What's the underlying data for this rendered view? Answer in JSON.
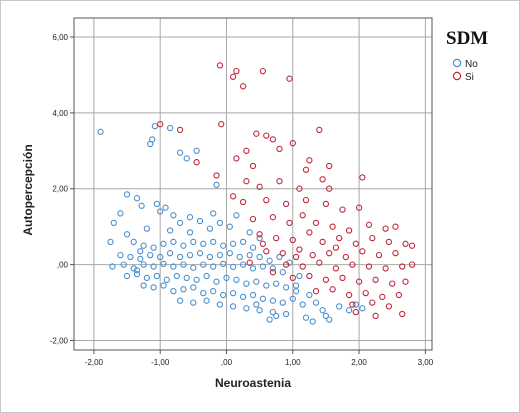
{
  "chart_data": {
    "type": "scatter",
    "xlabel": "Neuroastenia",
    "ylabel": "Autopercepción",
    "xlim": [
      -2.3,
      3.1
    ],
    "ylim": [
      -2.25,
      6.5
    ],
    "x_ticks": [
      "-2,00",
      "-1,00",
      ",00",
      "1,00",
      "2,00",
      "3,00"
    ],
    "y_ticks": [
      "-2,00",
      ",00",
      "2,00",
      "4,00",
      "6,00"
    ],
    "grid": true,
    "legend_title": "SDM",
    "legend_placement": "top-right",
    "series": [
      {
        "name": "No",
        "color": "#4a90d0",
        "points": [
          [
            -1.9,
            3.5
          ],
          [
            -1.08,
            3.65
          ],
          [
            -1.12,
            3.3
          ],
          [
            -1.15,
            3.18
          ],
          [
            -0.85,
            3.6
          ],
          [
            -0.7,
            2.95
          ],
          [
            -0.6,
            2.8
          ],
          [
            -0.45,
            3.0
          ],
          [
            -1.5,
            1.85
          ],
          [
            -1.35,
            1.75
          ],
          [
            -1.28,
            1.55
          ],
          [
            -1.6,
            1.35
          ],
          [
            -1.7,
            1.1
          ],
          [
            -1.5,
            0.8
          ],
          [
            -1.05,
            1.6
          ],
          [
            -1.0,
            1.4
          ],
          [
            -0.92,
            1.5
          ],
          [
            -0.8,
            1.3
          ],
          [
            -0.7,
            1.1
          ],
          [
            -0.55,
            1.25
          ],
          [
            -0.4,
            1.15
          ],
          [
            -0.25,
            0.95
          ],
          [
            -0.1,
            1.1
          ],
          [
            0.05,
            1.0
          ],
          [
            -0.85,
            0.9
          ],
          [
            -1.2,
            0.95
          ],
          [
            -0.55,
            0.85
          ],
          [
            -1.4,
            0.6
          ],
          [
            -1.25,
            0.5
          ],
          [
            -1.1,
            0.45
          ],
          [
            -0.95,
            0.55
          ],
          [
            -0.8,
            0.6
          ],
          [
            -0.65,
            0.5
          ],
          [
            -0.5,
            0.6
          ],
          [
            -0.35,
            0.55
          ],
          [
            -0.2,
            0.6
          ],
          [
            -0.05,
            0.5
          ],
          [
            0.1,
            0.55
          ],
          [
            0.25,
            0.6
          ],
          [
            0.4,
            0.45
          ],
          [
            -1.6,
            0.25
          ],
          [
            -1.45,
            0.2
          ],
          [
            -1.3,
            0.15
          ],
          [
            -1.15,
            0.25
          ],
          [
            -1.0,
            0.2
          ],
          [
            -0.85,
            0.3
          ],
          [
            -0.7,
            0.2
          ],
          [
            -0.55,
            0.25
          ],
          [
            -0.4,
            0.3
          ],
          [
            -0.25,
            0.2
          ],
          [
            -0.1,
            0.25
          ],
          [
            0.05,
            0.3
          ],
          [
            0.2,
            0.2
          ],
          [
            0.35,
            0.25
          ],
          [
            0.5,
            0.2
          ],
          [
            0.65,
            0.1
          ],
          [
            -1.72,
            -0.05
          ],
          [
            -1.55,
            0.0
          ],
          [
            -1.4,
            -0.1
          ],
          [
            -1.25,
            0.0
          ],
          [
            -1.1,
            -0.05
          ],
          [
            -0.95,
            0.02
          ],
          [
            -0.8,
            -0.05
          ],
          [
            -0.65,
            0.0
          ],
          [
            -0.5,
            -0.08
          ],
          [
            -0.35,
            0.0
          ],
          [
            -0.2,
            -0.05
          ],
          [
            -0.05,
            0.02
          ],
          [
            0.1,
            -0.06
          ],
          [
            0.25,
            0.0
          ],
          [
            0.4,
            -0.1
          ],
          [
            0.55,
            -0.05
          ],
          [
            0.7,
            -0.1
          ],
          [
            0.85,
            -0.2
          ],
          [
            -1.5,
            -0.3
          ],
          [
            -1.35,
            -0.25
          ],
          [
            -1.2,
            -0.35
          ],
          [
            -1.05,
            -0.3
          ],
          [
            -0.9,
            -0.4
          ],
          [
            -0.75,
            -0.3
          ],
          [
            -0.6,
            -0.35
          ],
          [
            -0.45,
            -0.4
          ],
          [
            -0.3,
            -0.3
          ],
          [
            -0.15,
            -0.45
          ],
          [
            0.0,
            -0.35
          ],
          [
            0.15,
            -0.4
          ],
          [
            0.3,
            -0.5
          ],
          [
            0.45,
            -0.45
          ],
          [
            0.6,
            -0.55
          ],
          [
            0.75,
            -0.5
          ],
          [
            0.9,
            -0.6
          ],
          [
            1.05,
            -0.55
          ],
          [
            -1.25,
            -0.55
          ],
          [
            -1.1,
            -0.6
          ],
          [
            -0.95,
            -0.55
          ],
          [
            -0.8,
            -0.7
          ],
          [
            -0.65,
            -0.65
          ],
          [
            -0.5,
            -0.6
          ],
          [
            -0.35,
            -0.75
          ],
          [
            -0.2,
            -0.7
          ],
          [
            -0.05,
            -0.8
          ],
          [
            0.1,
            -0.75
          ],
          [
            0.25,
            -0.85
          ],
          [
            0.4,
            -0.8
          ],
          [
            0.55,
            -0.9
          ],
          [
            0.7,
            -0.95
          ],
          [
            0.85,
            -1.0
          ],
          [
            1.0,
            -0.9
          ],
          [
            1.15,
            -1.05
          ],
          [
            -0.7,
            -0.95
          ],
          [
            -0.5,
            -1.0
          ],
          [
            -0.3,
            -0.95
          ],
          [
            -0.1,
            -1.05
          ],
          [
            0.1,
            -1.1
          ],
          [
            0.3,
            -1.15
          ],
          [
            0.5,
            -1.2
          ],
          [
            0.7,
            -1.25
          ],
          [
            0.9,
            -1.3
          ],
          [
            0.65,
            -1.45
          ],
          [
            0.75,
            -1.35
          ],
          [
            1.25,
            -0.8
          ],
          [
            1.35,
            -1.0
          ],
          [
            1.45,
            -1.2
          ],
          [
            1.55,
            -1.45
          ],
          [
            1.5,
            -1.35
          ],
          [
            1.7,
            -1.1
          ],
          [
            1.85,
            -1.2
          ],
          [
            1.95,
            -1.05
          ],
          [
            2.05,
            -1.15
          ],
          [
            1.3,
            -1.5
          ],
          [
            1.2,
            -1.4
          ],
          [
            0.35,
            0.85
          ],
          [
            0.5,
            0.7
          ],
          [
            -0.2,
            1.35
          ],
          [
            0.15,
            1.3
          ],
          [
            -0.15,
            2.1
          ],
          [
            -1.3,
            0.35
          ],
          [
            -1.75,
            0.6
          ],
          [
            -1.35,
            -0.15
          ],
          [
            0.8,
            0.2
          ],
          [
            0.95,
            0.05
          ],
          [
            1.1,
            -0.3
          ],
          [
            1.05,
            -0.7
          ],
          [
            0.45,
            -1.05
          ]
        ]
      },
      {
        "name": "Si",
        "color": "#c0283a",
        "points": [
          [
            -0.1,
            5.25
          ],
          [
            0.15,
            5.1
          ],
          [
            0.55,
            5.1
          ],
          [
            0.1,
            4.95
          ],
          [
            0.95,
            4.9
          ],
          [
            0.25,
            4.7
          ],
          [
            -1.0,
            3.7
          ],
          [
            -0.7,
            3.55
          ],
          [
            -0.08,
            3.7
          ],
          [
            0.45,
            3.45
          ],
          [
            0.6,
            3.4
          ],
          [
            0.7,
            3.3
          ],
          [
            1.4,
            3.55
          ],
          [
            1.0,
            3.2
          ],
          [
            0.8,
            3.05
          ],
          [
            0.3,
            3.0
          ],
          [
            -0.45,
            2.7
          ],
          [
            0.15,
            2.8
          ],
          [
            0.4,
            2.6
          ],
          [
            1.25,
            2.75
          ],
          [
            1.55,
            2.6
          ],
          [
            1.2,
            2.5
          ],
          [
            -0.15,
            2.35
          ],
          [
            0.3,
            2.2
          ],
          [
            0.5,
            2.05
          ],
          [
            0.8,
            2.2
          ],
          [
            1.1,
            2.0
          ],
          [
            1.45,
            2.25
          ],
          [
            1.55,
            2.0
          ],
          [
            2.05,
            2.3
          ],
          [
            0.1,
            1.8
          ],
          [
            0.25,
            1.65
          ],
          [
            0.6,
            1.7
          ],
          [
            0.9,
            1.6
          ],
          [
            1.2,
            1.7
          ],
          [
            1.5,
            1.6
          ],
          [
            1.75,
            1.45
          ],
          [
            2.0,
            1.5
          ],
          [
            0.4,
            1.2
          ],
          [
            0.7,
            1.25
          ],
          [
            0.95,
            1.1
          ],
          [
            1.15,
            1.3
          ],
          [
            1.35,
            1.1
          ],
          [
            1.6,
            1.0
          ],
          [
            1.85,
            0.9
          ],
          [
            2.15,
            1.05
          ],
          [
            2.4,
            0.95
          ],
          [
            2.55,
            1.0
          ],
          [
            0.5,
            0.8
          ],
          [
            0.75,
            0.7
          ],
          [
            1.0,
            0.65
          ],
          [
            1.25,
            0.85
          ],
          [
            1.45,
            0.6
          ],
          [
            1.7,
            0.7
          ],
          [
            1.95,
            0.55
          ],
          [
            2.2,
            0.7
          ],
          [
            2.45,
            0.6
          ],
          [
            2.7,
            0.55
          ],
          [
            0.6,
            0.35
          ],
          [
            0.85,
            0.3
          ],
          [
            1.1,
            0.4
          ],
          [
            1.3,
            0.25
          ],
          [
            1.55,
            0.3
          ],
          [
            1.8,
            0.2
          ],
          [
            2.05,
            0.35
          ],
          [
            2.3,
            0.25
          ],
          [
            2.55,
            0.3
          ],
          [
            2.8,
            0.0
          ],
          [
            0.9,
            0.0
          ],
          [
            1.15,
            -0.05
          ],
          [
            1.4,
            0.05
          ],
          [
            1.65,
            -0.1
          ],
          [
            1.9,
            0.0
          ],
          [
            2.15,
            -0.05
          ],
          [
            2.4,
            -0.1
          ],
          [
            2.65,
            -0.05
          ],
          [
            1.0,
            -0.35
          ],
          [
            1.25,
            -0.3
          ],
          [
            1.5,
            -0.4
          ],
          [
            1.75,
            -0.35
          ],
          [
            2.0,
            -0.45
          ],
          [
            2.25,
            -0.4
          ],
          [
            2.5,
            -0.5
          ],
          [
            2.7,
            -0.45
          ],
          [
            1.35,
            -0.7
          ],
          [
            1.6,
            -0.65
          ],
          [
            1.85,
            -0.8
          ],
          [
            2.1,
            -0.75
          ],
          [
            2.35,
            -0.85
          ],
          [
            2.6,
            -0.8
          ],
          [
            1.9,
            -1.05
          ],
          [
            2.2,
            -1.0
          ],
          [
            2.45,
            -1.1
          ],
          [
            2.65,
            -1.3
          ],
          [
            2.25,
            -1.35
          ],
          [
            1.95,
            -1.25
          ],
          [
            0.35,
            0.05
          ],
          [
            0.7,
            -0.2
          ],
          [
            1.05,
            0.2
          ],
          [
            0.55,
            0.55
          ],
          [
            1.65,
            0.45
          ],
          [
            2.8,
            0.5
          ]
        ]
      }
    ]
  }
}
